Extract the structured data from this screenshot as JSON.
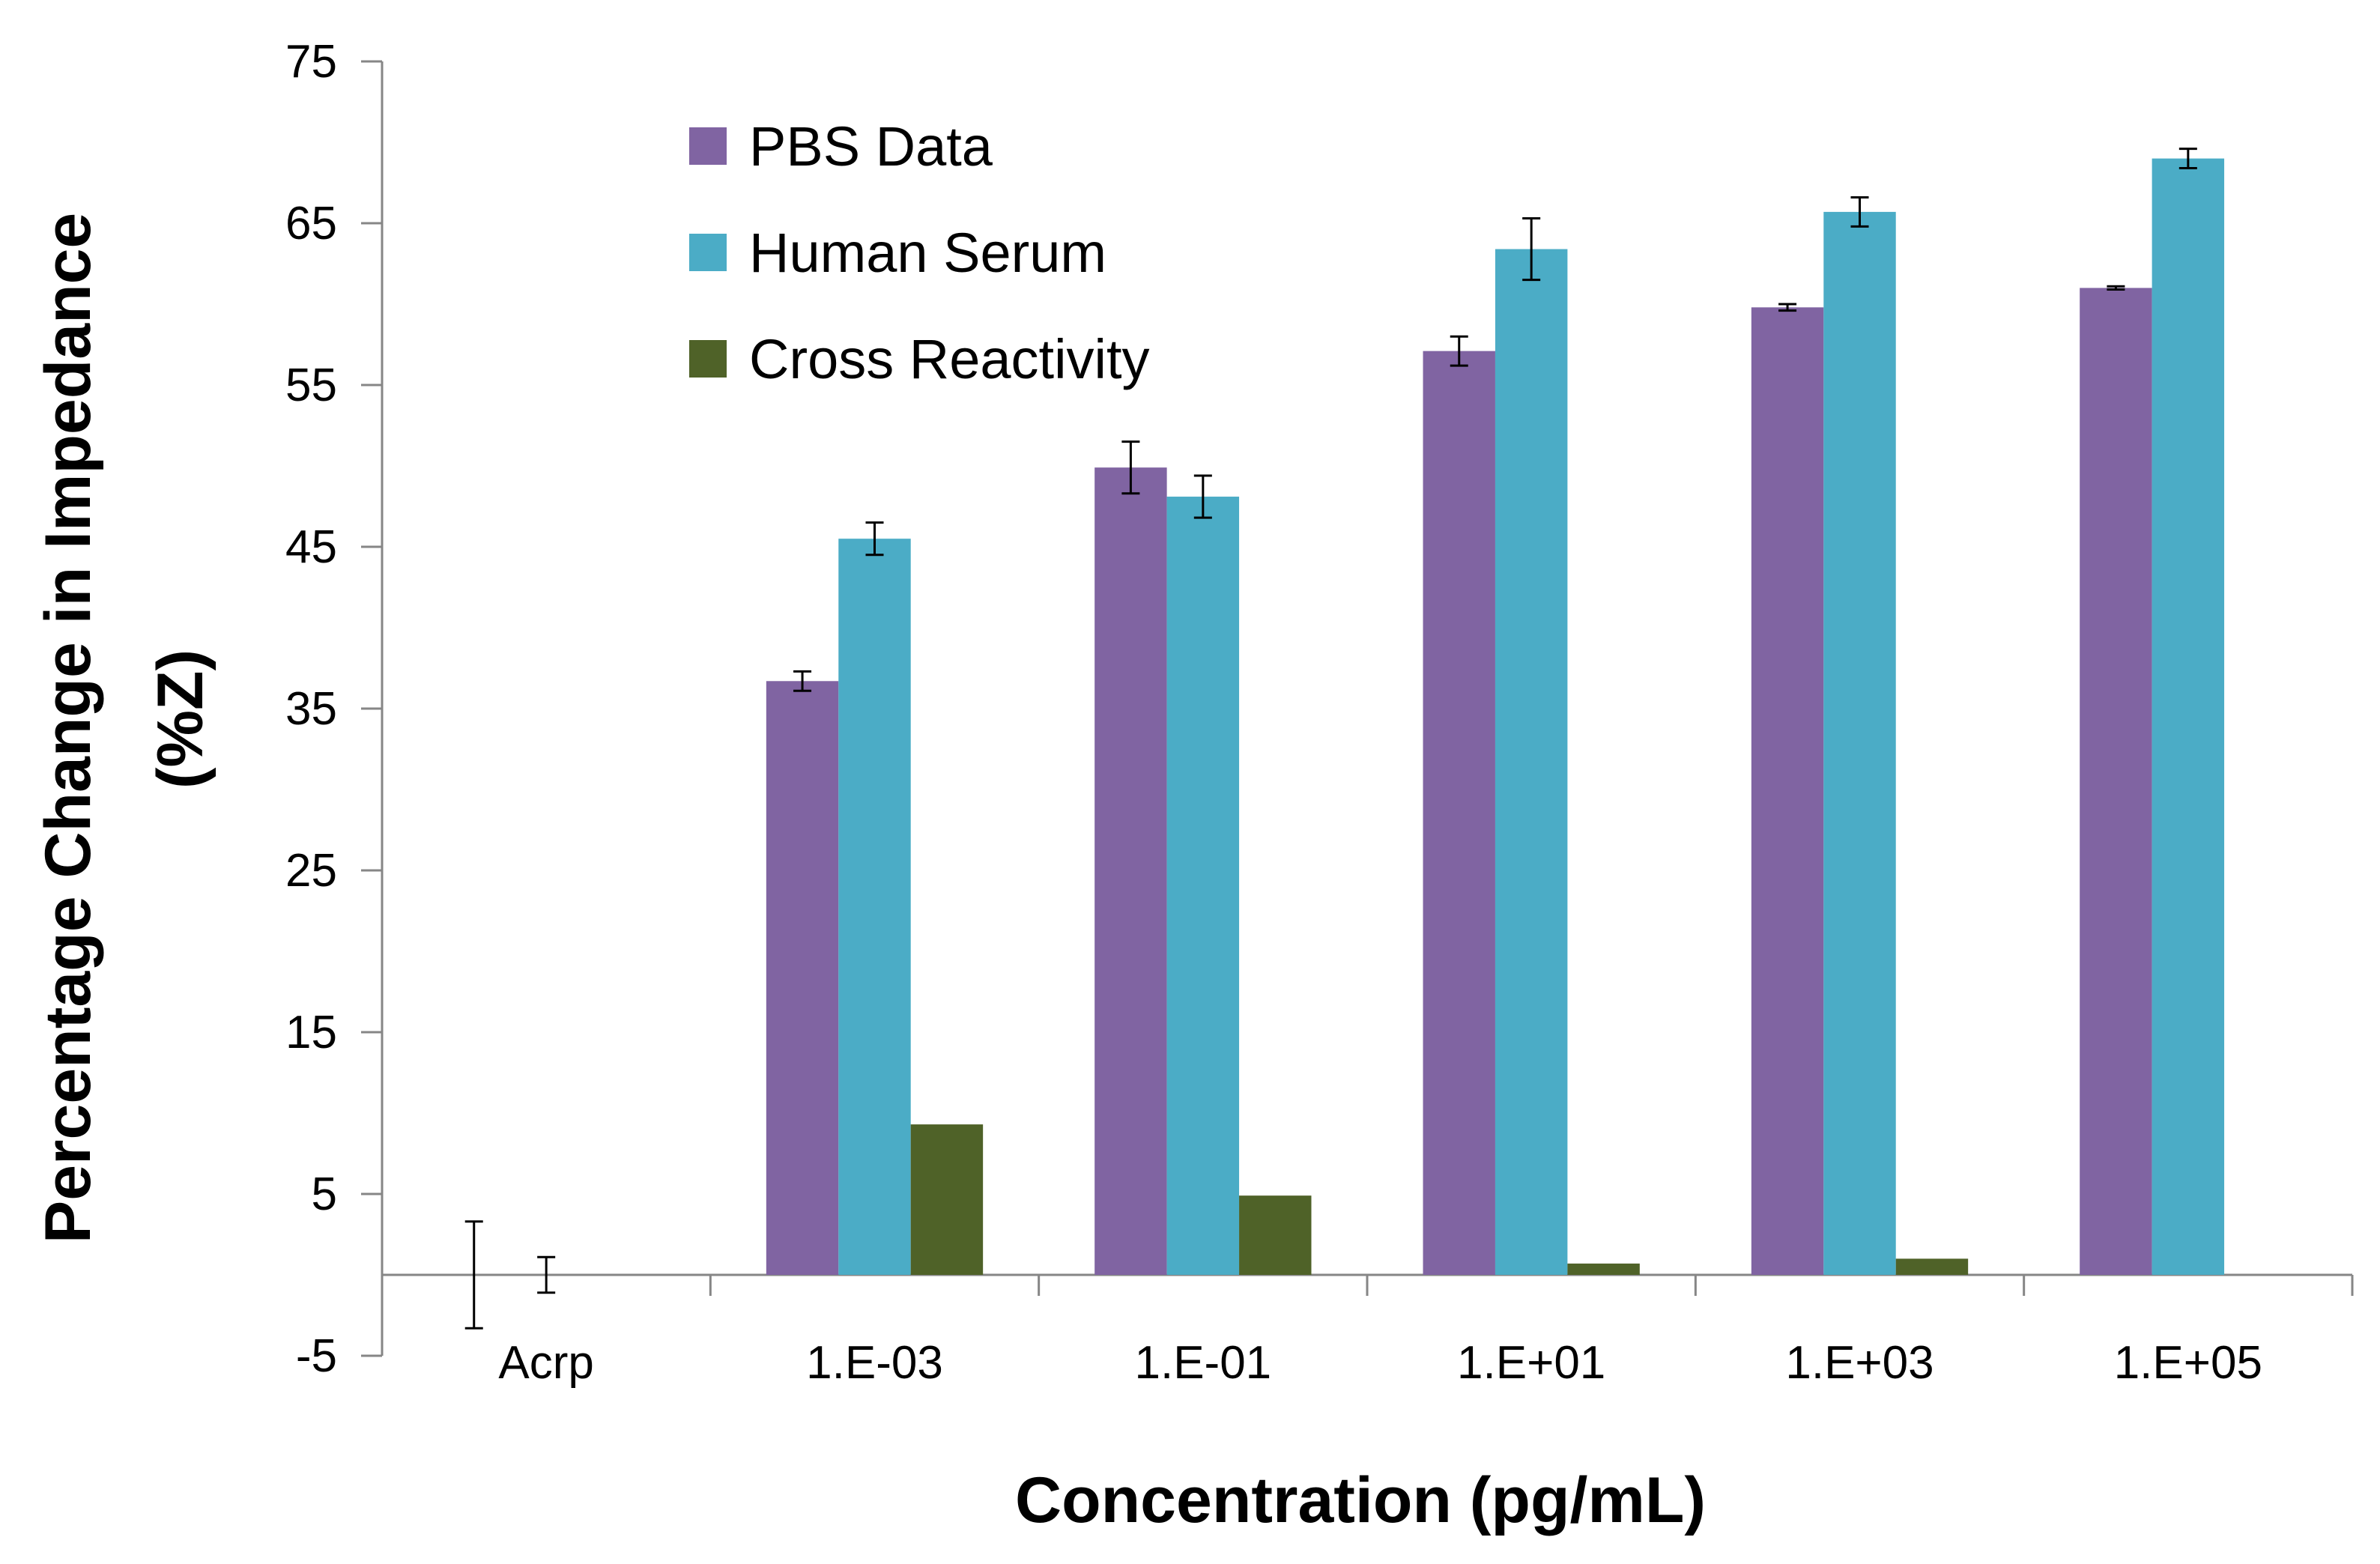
{
  "chart_data": {
    "type": "bar",
    "title": "",
    "xlabel": "Concentration (pg/mL)",
    "ylabel": "Percentage Change in Impedance",
    "ylabel_line2": "(%Z)",
    "categories": [
      "Acrp",
      "1.E-03",
      "1.E-01",
      "1.E+01",
      "1.E+03",
      "1.E+05"
    ],
    "ylim": [
      -5,
      75
    ],
    "yticks": [
      75,
      65,
      55,
      45,
      35,
      25,
      15,
      5,
      -5
    ],
    "legend_position": "top-left",
    "series": [
      {
        "name": "PBS Data",
        "color": "#8064A2",
        "values": [
          0,
          36.7,
          49.9,
          57.1,
          59.8,
          61.0
        ],
        "errors": [
          3.3,
          0.6,
          1.6,
          0.9,
          0.2,
          0.1
        ]
      },
      {
        "name": "Human Serum",
        "color": "#4BACC6",
        "values": [
          0,
          45.5,
          48.1,
          63.4,
          65.7,
          69.0
        ],
        "errors": [
          1.1,
          1.0,
          1.3,
          1.9,
          0.9,
          0.6
        ]
      },
      {
        "name": "Cross Reactivity",
        "color": "#4F6228",
        "values": [
          null,
          9.3,
          4.9,
          0.7,
          1.0,
          null
        ],
        "errors": [
          null,
          null,
          null,
          null,
          null,
          null
        ]
      }
    ]
  }
}
